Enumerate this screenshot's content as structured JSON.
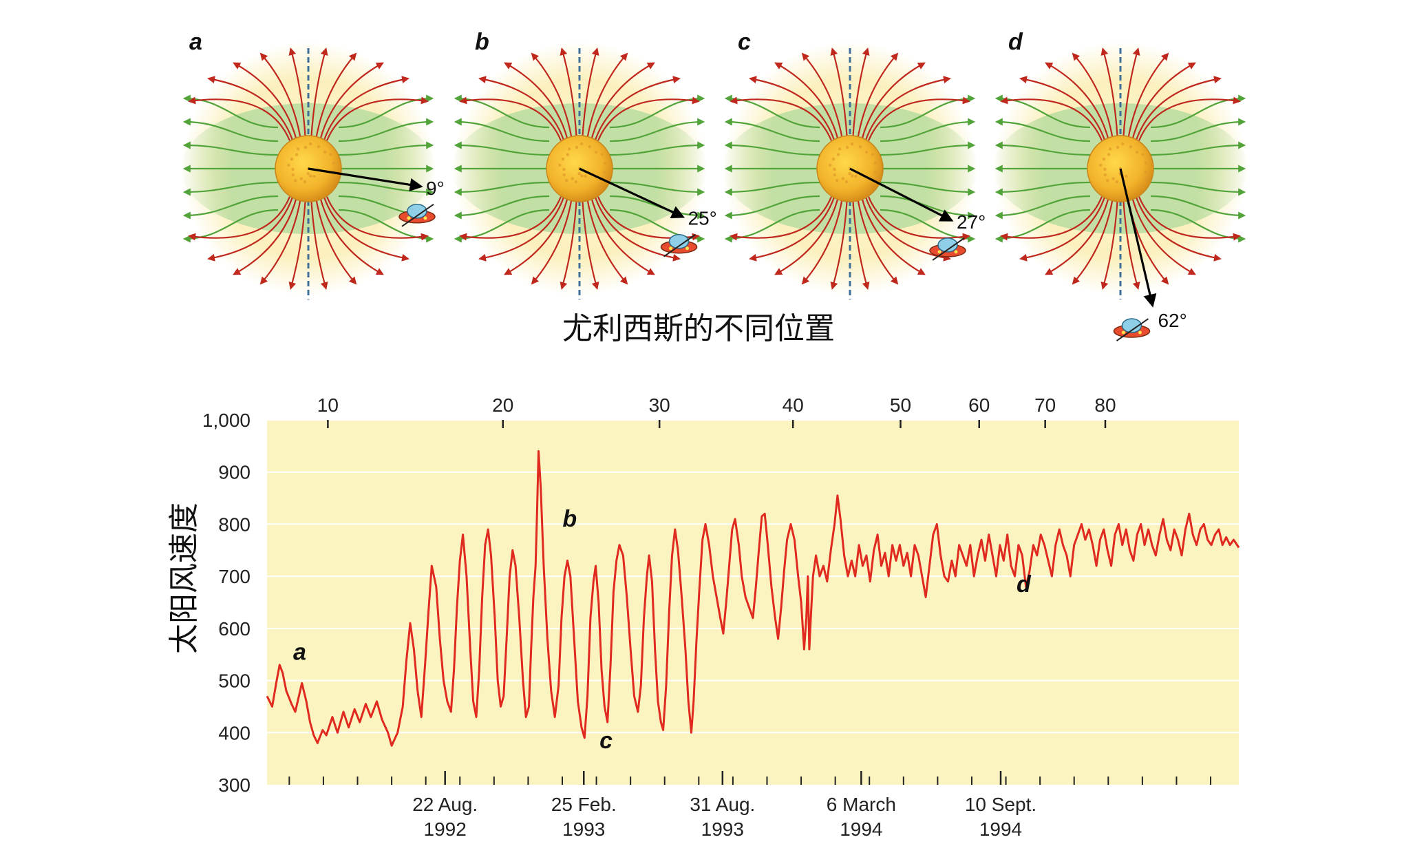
{
  "caption": "尤利西斯的不同位置",
  "panels": [
    {
      "letter": "a",
      "angle_label": "9°",
      "angle": 9
    },
    {
      "letter": "b",
      "angle_label": "25°",
      "angle": 25
    },
    {
      "letter": "c",
      "angle_label": "27°",
      "angle": 27
    },
    {
      "letter": "d",
      "angle_label": "62°",
      "angle": 62
    }
  ],
  "colors": {
    "open_field": "#c0281e",
    "closed_field": "#52a43a",
    "sun": "#f2b82a",
    "halo": "#fbf2c6",
    "axis_line": "#3f6f98",
    "plot_bg": "#fbf3c0",
    "series": "#e02a1f"
  },
  "chart_data": {
    "type": "line",
    "ylabel": "太阳风速度",
    "ylim": [
      300,
      1000
    ],
    "yticks": [
      300,
      400,
      500,
      600,
      700,
      800,
      900,
      1000
    ],
    "ytick_labels": [
      "300",
      "400",
      "500",
      "600",
      "700",
      "800",
      "900",
      "1,000"
    ],
    "x_range_days": [
      0,
      1310
    ],
    "bottom_ticks": [
      {
        "day": 240,
        "line1": "22 Aug.",
        "line2": "1992"
      },
      {
        "day": 427,
        "line1": "25 Feb.",
        "line2": "1993"
      },
      {
        "day": 614,
        "line1": "31 Aug.",
        "line2": "1993"
      },
      {
        "day": 801,
        "line1": "6 March",
        "line2": "1994"
      },
      {
        "day": 989,
        "line1": "10 Sept.",
        "line2": "1994"
      }
    ],
    "top_axis": [
      {
        "value": 10,
        "day": 82
      },
      {
        "value": 20,
        "day": 318
      },
      {
        "value": 30,
        "day": 529
      },
      {
        "value": 40,
        "day": 709
      },
      {
        "value": 50,
        "day": 854
      },
      {
        "value": 60,
        "day": 960
      },
      {
        "value": 70,
        "day": 1049
      },
      {
        "value": 80,
        "day": 1130
      }
    ],
    "annotations": [
      {
        "label": "a",
        "day": 44,
        "value": 540
      },
      {
        "label": "b",
        "day": 408,
        "value": 795
      },
      {
        "label": "c",
        "day": 457,
        "value": 370
      },
      {
        "label": "d",
        "day": 1020,
        "value": 670
      }
    ],
    "series": [
      {
        "name": "solar wind speed",
        "points": [
          [
            0,
            470
          ],
          [
            7,
            450
          ],
          [
            13,
            500
          ],
          [
            17,
            530
          ],
          [
            21,
            515
          ],
          [
            26,
            480
          ],
          [
            33,
            455
          ],
          [
            38,
            440
          ],
          [
            43,
            470
          ],
          [
            47,
            495
          ],
          [
            53,
            460
          ],
          [
            58,
            420
          ],
          [
            63,
            395
          ],
          [
            68,
            380
          ],
          [
            75,
            405
          ],
          [
            80,
            395
          ],
          [
            88,
            430
          ],
          [
            95,
            400
          ],
          [
            103,
            440
          ],
          [
            110,
            410
          ],
          [
            118,
            445
          ],
          [
            125,
            420
          ],
          [
            133,
            455
          ],
          [
            140,
            430
          ],
          [
            148,
            460
          ],
          [
            155,
            425
          ],
          [
            163,
            400
          ],
          [
            168,
            375
          ],
          [
            176,
            400
          ],
          [
            183,
            450
          ],
          [
            188,
            540
          ],
          [
            193,
            610
          ],
          [
            198,
            560
          ],
          [
            203,
            480
          ],
          [
            208,
            430
          ],
          [
            213,
            530
          ],
          [
            218,
            640
          ],
          [
            222,
            720
          ],
          [
            228,
            680
          ],
          [
            233,
            580
          ],
          [
            238,
            500
          ],
          [
            243,
            460
          ],
          [
            248,
            440
          ],
          [
            252,
            520
          ],
          [
            256,
            640
          ],
          [
            260,
            730
          ],
          [
            264,
            780
          ],
          [
            269,
            700
          ],
          [
            274,
            560
          ],
          [
            278,
            460
          ],
          [
            282,
            430
          ],
          [
            286,
            520
          ],
          [
            290,
            660
          ],
          [
            294,
            760
          ],
          [
            298,
            790
          ],
          [
            302,
            740
          ],
          [
            307,
            620
          ],
          [
            311,
            500
          ],
          [
            315,
            450
          ],
          [
            319,
            470
          ],
          [
            323,
            580
          ],
          [
            327,
            700
          ],
          [
            331,
            750
          ],
          [
            335,
            720
          ],
          [
            340,
            620
          ],
          [
            345,
            500
          ],
          [
            349,
            430
          ],
          [
            353,
            450
          ],
          [
            356,
            560
          ],
          [
            359,
            660
          ],
          [
            362,
            720
          ],
          [
            364,
            820
          ],
          [
            366,
            940
          ],
          [
            369,
            870
          ],
          [
            373,
            720
          ],
          [
            378,
            580
          ],
          [
            383,
            480
          ],
          [
            388,
            430
          ],
          [
            393,
            490
          ],
          [
            397,
            620
          ],
          [
            401,
            700
          ],
          [
            405,
            730
          ],
          [
            409,
            700
          ],
          [
            414,
            580
          ],
          [
            419,
            460
          ],
          [
            424,
            410
          ],
          [
            428,
            390
          ],
          [
            432,
            470
          ],
          [
            436,
            620
          ],
          [
            440,
            690
          ],
          [
            443,
            720
          ],
          [
            447,
            650
          ],
          [
            451,
            520
          ],
          [
            455,
            450
          ],
          [
            459,
            420
          ],
          [
            463,
            530
          ],
          [
            467,
            670
          ],
          [
            471,
            730
          ],
          [
            475,
            760
          ],
          [
            480,
            740
          ],
          [
            485,
            660
          ],
          [
            490,
            560
          ],
          [
            495,
            470
          ],
          [
            500,
            440
          ],
          [
            504,
            490
          ],
          [
            508,
            620
          ],
          [
            512,
            700
          ],
          [
            515,
            740
          ],
          [
            519,
            690
          ],
          [
            523,
            560
          ],
          [
            527,
            460
          ],
          [
            531,
            420
          ],
          [
            534,
            405
          ],
          [
            538,
            490
          ],
          [
            542,
            630
          ],
          [
            546,
            740
          ],
          [
            550,
            790
          ],
          [
            554,
            750
          ],
          [
            559,
            660
          ],
          [
            564,
            560
          ],
          [
            568,
            460
          ],
          [
            572,
            400
          ],
          [
            575,
            460
          ],
          [
            579,
            580
          ],
          [
            583,
            680
          ],
          [
            587,
            770
          ],
          [
            591,
            800
          ],
          [
            596,
            760
          ],
          [
            601,
            700
          ],
          [
            606,
            660
          ],
          [
            611,
            620
          ],
          [
            615,
            590
          ],
          [
            619,
            650
          ],
          [
            623,
            720
          ],
          [
            627,
            790
          ],
          [
            631,
            810
          ],
          [
            636,
            760
          ],
          [
            640,
            700
          ],
          [
            645,
            660
          ],
          [
            650,
            640
          ],
          [
            655,
            620
          ],
          [
            659,
            680
          ],
          [
            663,
            750
          ],
          [
            667,
            815
          ],
          [
            671,
            820
          ],
          [
            675,
            760
          ],
          [
            680,
            680
          ],
          [
            685,
            620
          ],
          [
            689,
            580
          ],
          [
            693,
            640
          ],
          [
            697,
            710
          ],
          [
            701,
            770
          ],
          [
            706,
            800
          ],
          [
            711,
            770
          ],
          [
            716,
            700
          ],
          [
            720,
            650
          ],
          [
            724,
            560
          ],
          [
            727,
            620
          ],
          [
            729,
            700
          ],
          [
            731,
            560
          ],
          [
            733,
            620
          ],
          [
            736,
            700
          ],
          [
            740,
            740
          ],
          [
            745,
            700
          ],
          [
            750,
            720
          ],
          [
            755,
            690
          ],
          [
            760,
            750
          ],
          [
            765,
            800
          ],
          [
            769,
            855
          ],
          [
            773,
            810
          ],
          [
            778,
            740
          ],
          [
            783,
            700
          ],
          [
            788,
            730
          ],
          [
            793,
            700
          ],
          [
            798,
            760
          ],
          [
            803,
            720
          ],
          [
            808,
            740
          ],
          [
            813,
            690
          ],
          [
            818,
            750
          ],
          [
            823,
            780
          ],
          [
            828,
            720
          ],
          [
            833,
            745
          ],
          [
            838,
            700
          ],
          [
            843,
            760
          ],
          [
            848,
            730
          ],
          [
            853,
            760
          ],
          [
            858,
            720
          ],
          [
            863,
            745
          ],
          [
            868,
            700
          ],
          [
            873,
            760
          ],
          [
            878,
            740
          ],
          [
            883,
            700
          ],
          [
            888,
            660
          ],
          [
            893,
            720
          ],
          [
            898,
            780
          ],
          [
            903,
            800
          ],
          [
            908,
            740
          ],
          [
            913,
            700
          ],
          [
            918,
            690
          ],
          [
            923,
            730
          ],
          [
            928,
            700
          ],
          [
            933,
            760
          ],
          [
            938,
            740
          ],
          [
            943,
            720
          ],
          [
            948,
            760
          ],
          [
            953,
            700
          ],
          [
            958,
            740
          ],
          [
            963,
            770
          ],
          [
            968,
            730
          ],
          [
            973,
            780
          ],
          [
            978,
            740
          ],
          [
            983,
            700
          ],
          [
            988,
            760
          ],
          [
            993,
            730
          ],
          [
            998,
            780
          ],
          [
            1003,
            720
          ],
          [
            1008,
            700
          ],
          [
            1013,
            760
          ],
          [
            1018,
            740
          ],
          [
            1023,
            680
          ],
          [
            1028,
            710
          ],
          [
            1033,
            760
          ],
          [
            1038,
            740
          ],
          [
            1043,
            780
          ],
          [
            1048,
            760
          ],
          [
            1053,
            730
          ],
          [
            1058,
            700
          ],
          [
            1063,
            760
          ],
          [
            1068,
            790
          ],
          [
            1073,
            760
          ],
          [
            1078,
            740
          ],
          [
            1083,
            700
          ],
          [
            1088,
            760
          ],
          [
            1093,
            780
          ],
          [
            1098,
            800
          ],
          [
            1103,
            770
          ],
          [
            1108,
            790
          ],
          [
            1113,
            760
          ],
          [
            1118,
            720
          ],
          [
            1123,
            770
          ],
          [
            1128,
            790
          ],
          [
            1133,
            750
          ],
          [
            1138,
            720
          ],
          [
            1143,
            780
          ],
          [
            1148,
            800
          ],
          [
            1153,
            760
          ],
          [
            1158,
            790
          ],
          [
            1163,
            750
          ],
          [
            1168,
            730
          ],
          [
            1173,
            780
          ],
          [
            1178,
            800
          ],
          [
            1183,
            760
          ],
          [
            1188,
            790
          ],
          [
            1193,
            760
          ],
          [
            1198,
            740
          ],
          [
            1203,
            780
          ],
          [
            1208,
            810
          ],
          [
            1213,
            770
          ],
          [
            1218,
            750
          ],
          [
            1223,
            790
          ],
          [
            1228,
            770
          ],
          [
            1233,
            740
          ],
          [
            1238,
            790
          ],
          [
            1243,
            820
          ],
          [
            1248,
            780
          ],
          [
            1253,
            760
          ],
          [
            1258,
            790
          ],
          [
            1263,
            800
          ],
          [
            1268,
            770
          ],
          [
            1273,
            760
          ],
          [
            1278,
            780
          ],
          [
            1283,
            790
          ],
          [
            1288,
            760
          ],
          [
            1293,
            775
          ],
          [
            1298,
            760
          ],
          [
            1303,
            770
          ],
          [
            1310,
            755
          ]
        ]
      }
    ]
  }
}
